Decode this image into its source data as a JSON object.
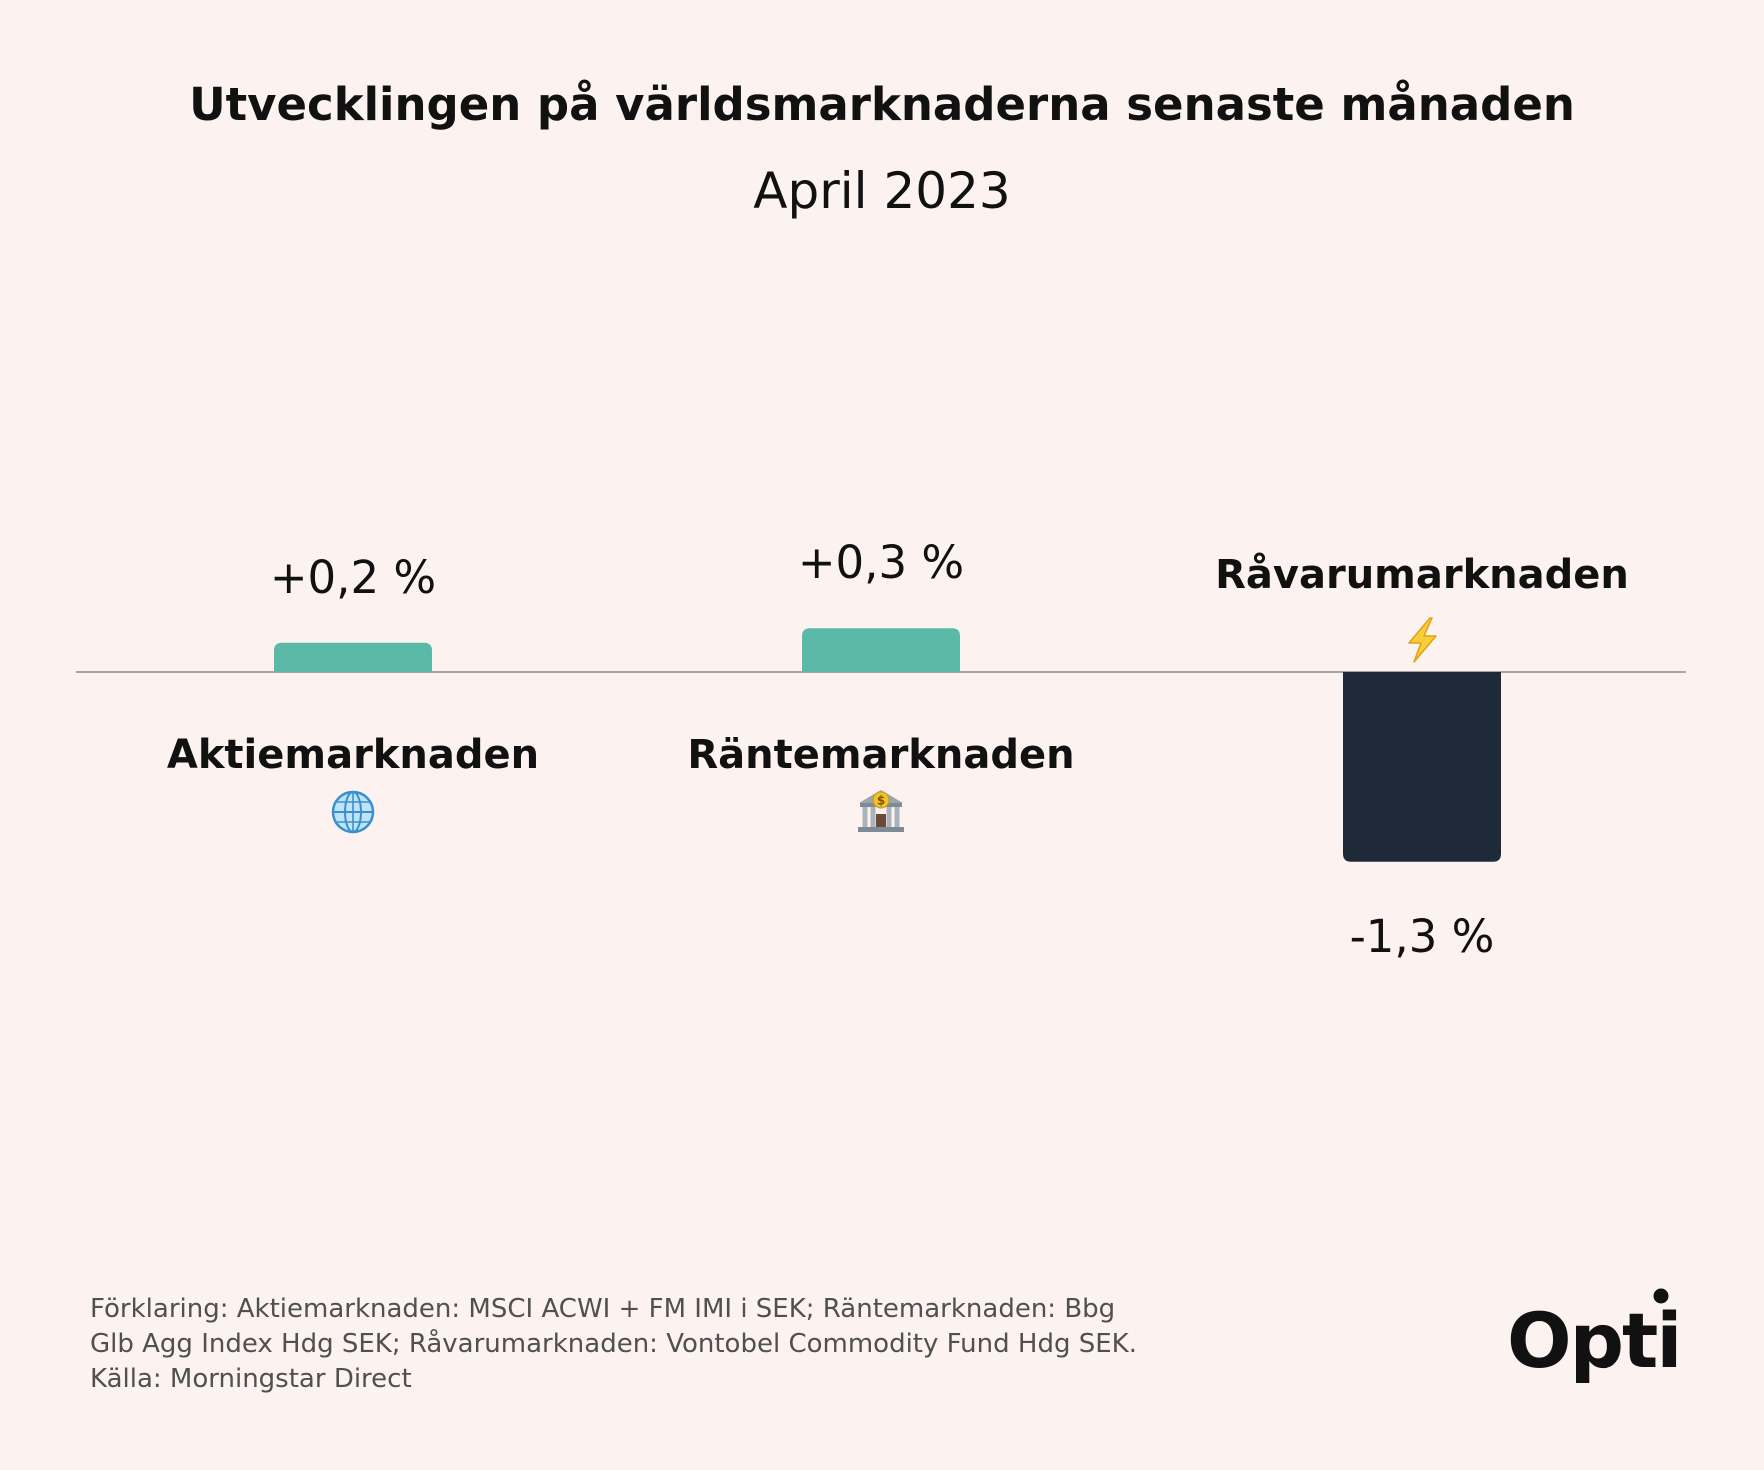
{
  "chart_data": {
    "type": "bar",
    "title": "Utvecklingen på världsmarknaderna senaste månaden",
    "subtitle": "April 2023",
    "categories": [
      "Aktiemarknaden",
      "Räntemarknaden",
      "Råvarumarknaden"
    ],
    "values": [
      0.2,
      0.3,
      -1.3
    ],
    "value_labels": [
      "+0,2 %",
      "+0,3 %",
      "-1,3 %"
    ],
    "category_icons": [
      "globe-icon",
      "bank-icon",
      "lightning-icon"
    ],
    "unit": "%",
    "grid": false,
    "legend": "none",
    "colors": {
      "positive": "#5bb9a7",
      "negative": "#1f2a38",
      "baseline": "#8a8a8a",
      "text": "#111111",
      "background": "#fcf2f0"
    }
  },
  "footnote": {
    "lines": [
      "Förklaring: Aktiemarknaden: MSCI ACWI + FM IMI i SEK; Räntemarknaden: Bbg",
      "Glb Agg Index Hdg SEK; Råvarumarknaden: Vontobel Commodity Fund Hdg SEK.",
      "Källa: Morningstar Direct"
    ]
  },
  "brand": {
    "logo_text": "Opti"
  }
}
